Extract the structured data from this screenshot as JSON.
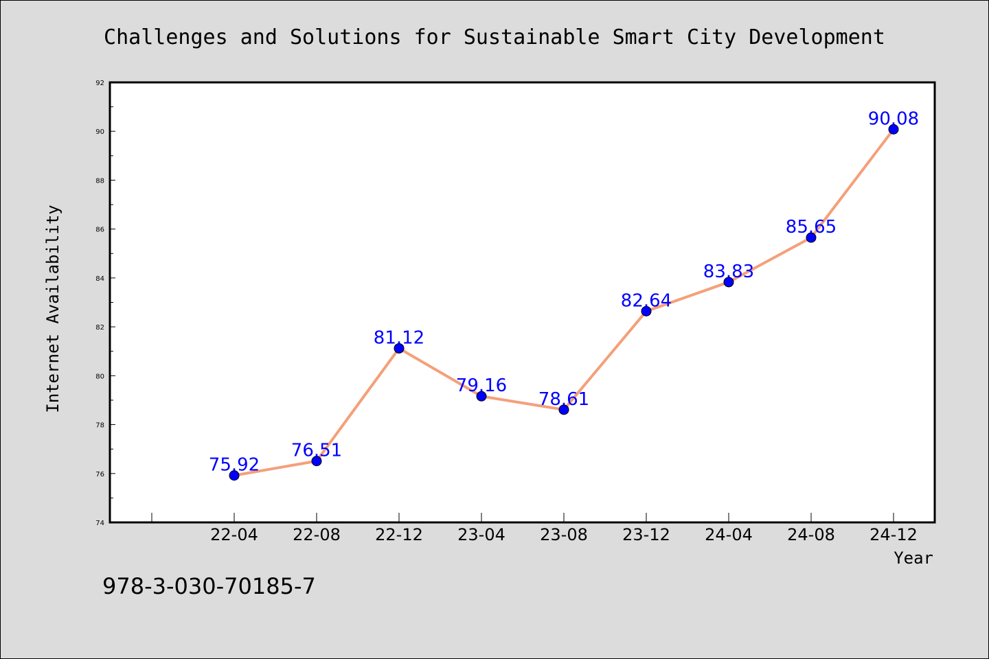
{
  "chart_data": {
    "type": "line",
    "title": "Challenges and Solutions for Sustainable Smart City Development",
    "xlabel": "Year",
    "ylabel": "Internet Availability",
    "categories": [
      "22-04",
      "22-08",
      "22-12",
      "23-04",
      "23-08",
      "23-12",
      "24-04",
      "24-08",
      "24-12"
    ],
    "series": [
      {
        "values": [
          75.92,
          76.51,
          81.12,
          79.16,
          78.61,
          82.64,
          83.83,
          85.65,
          90.08
        ],
        "data_labels": [
          "75.92",
          "76.51",
          "81.12",
          "79.16",
          "78.61",
          "82.64",
          "83.83",
          "85.65",
          "90.08"
        ],
        "line_color": "#f4a07a",
        "marker_color": "#0000ff"
      }
    ],
    "ylim": [
      74,
      92
    ],
    "yticks": [
      "74",
      "76",
      "78",
      "80",
      "82",
      "84",
      "86",
      "88",
      "90",
      "92"
    ],
    "grid": false,
    "legend": "none"
  },
  "footer": {
    "text": "978-3-030-70185-7"
  },
  "colors": {
    "background": "#dcdcdc",
    "plot_background": "#ffffff",
    "line": "#f4a07a",
    "marker": "#0000ff",
    "data_label": "#0000ff"
  }
}
